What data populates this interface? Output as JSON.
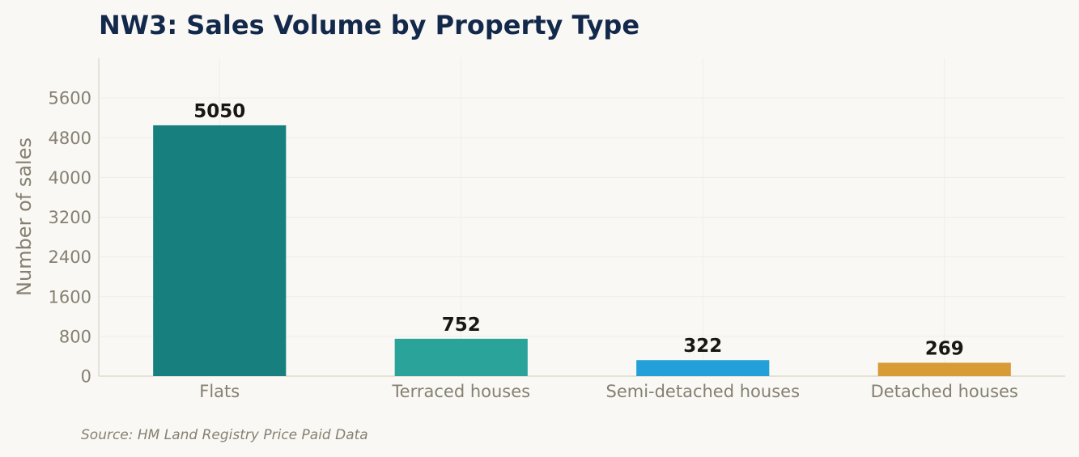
{
  "chart_data": {
    "type": "bar",
    "title": "NW3: Sales Volume by Property Type",
    "ylabel": "Number of sales",
    "xlabel": "",
    "categories": [
      "Flats",
      "Terraced houses",
      "Semi-detached houses",
      "Detached houses"
    ],
    "values": [
      5050,
      752,
      322,
      269
    ],
    "value_labels": [
      "5050",
      "752",
      "322",
      "269"
    ],
    "colors": [
      "#17807e",
      "#2aa39b",
      "#23a0da",
      "#d89b35"
    ],
    "ylim": [
      0,
      6400
    ],
    "yticks": [
      0,
      800,
      1600,
      2400,
      3200,
      4000,
      4800,
      5600
    ],
    "ytick_labels": [
      "0",
      "800",
      "1600",
      "2400",
      "3200",
      "4000",
      "4800",
      "5600"
    ],
    "grid": true,
    "source": "Source: HM Land Registry Price Paid Data"
  },
  "style": {
    "background": "#faf8f4",
    "title_color": "#13294b",
    "axis_text_color": "#858071",
    "value_label_color": "#1a1712",
    "grid_color": "#efede7",
    "axis_color": "#dfdbcf"
  }
}
